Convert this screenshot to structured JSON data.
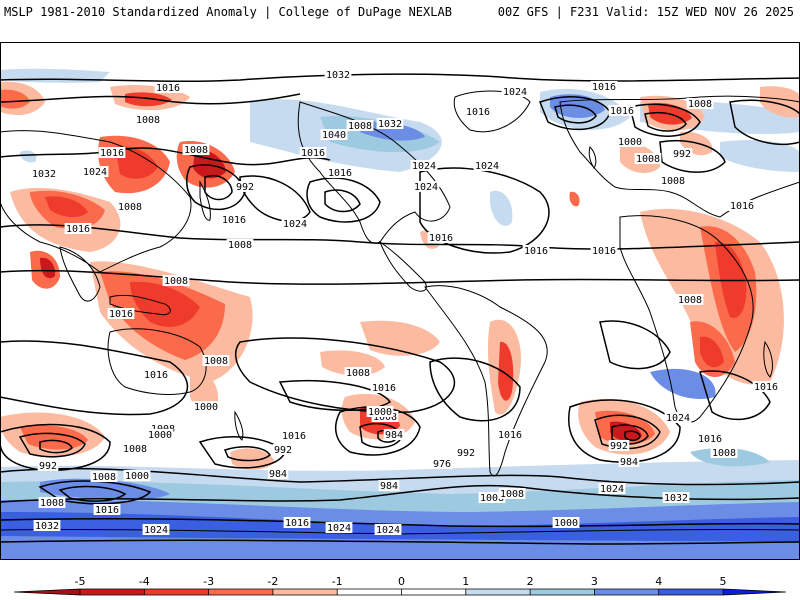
{
  "header": {
    "title_left": "MSLP 1981-2010 Standardized Anomaly | College of DuPage NEXLAB",
    "title_right": "00Z GFS | F231 Valid: 15Z WED NOV 26 2025"
  },
  "colors": {
    "neg5": "#a50f15",
    "neg4": "#cb181d",
    "neg3": "#ef3b2c",
    "neg2": "#fb6a4a",
    "neg1": "#fcbba1",
    "zero": "#ffffff",
    "pos1": "#c6dbef",
    "pos2": "#9ecae1",
    "pos3": "#6b8de6",
    "pos4": "#3a5fe0",
    "pos5": "#0b1fd9",
    "contour": "#000000",
    "land": "#000000"
  },
  "colorbar": {
    "ticks": [
      "-5",
      "-4",
      "-3",
      "-2",
      "-1",
      "0",
      "1",
      "2",
      "3",
      "4",
      "5"
    ]
  },
  "contour_labels": [
    "1024",
    "1016",
    "1008",
    "1008",
    "1016",
    "1032",
    "1024",
    "1008",
    "1016",
    "992",
    "1016",
    "1024",
    "1016",
    "1008",
    "1032",
    "1040",
    "1016",
    "1024",
    "1024",
    "1024",
    "1032",
    "1016",
    "1016",
    "1024",
    "1016",
    "1008",
    "1000",
    "1008",
    "1008",
    "992",
    "1016",
    "1016",
    "1016",
    "1016",
    "1008",
    "1008",
    "1016",
    "1008",
    "1008",
    "1016",
    "1016",
    "1008",
    "1016",
    "1000",
    "1008",
    "1016",
    "1008",
    "1008",
    "1000",
    "992",
    "1000",
    "984",
    "984",
    "992",
    "976",
    "992",
    "984",
    "992",
    "984",
    "1008",
    "1024",
    "1016",
    "1008",
    "1024",
    "1032",
    "1016",
    "1000",
    "1008",
    "1000",
    "1008",
    "1008",
    "1016",
    "1016",
    "1024",
    "1032",
    "1024",
    "1024"
  ]
}
